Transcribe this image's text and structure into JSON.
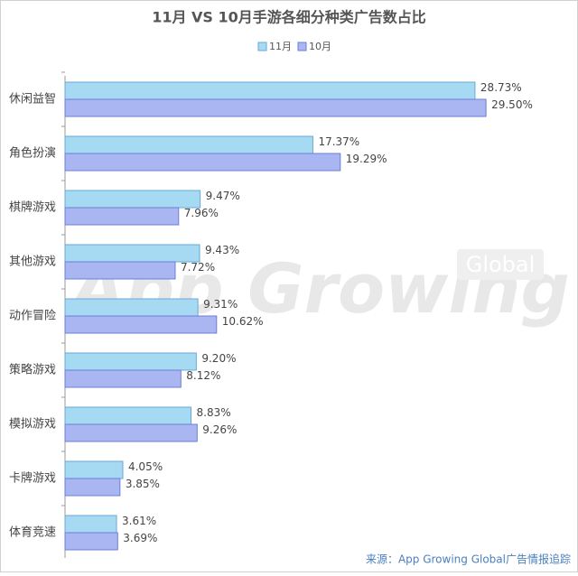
{
  "chart_data": {
    "type": "bar",
    "orientation": "horizontal",
    "title": "11月 VS 10月手游各细分种类广告数占比",
    "categories": [
      "休闲益智",
      "角色扮演",
      "棋牌游戏",
      "其他游戏",
      "动作冒险",
      "策略游戏",
      "模拟游戏",
      "卡牌游戏",
      "体育竞速"
    ],
    "series": [
      {
        "name": "11月",
        "color": "#a6daf3",
        "values": [
          28.73,
          17.37,
          9.47,
          9.43,
          9.31,
          9.2,
          8.83,
          4.05,
          3.61
        ],
        "value_labels": [
          "28.73%",
          "17.37%",
          "9.47%",
          "9.43%",
          "9.31%",
          "9.20%",
          "8.83%",
          "4.05%",
          "3.61%"
        ]
      },
      {
        "name": "10月",
        "color": "#aab6f2",
        "values": [
          29.5,
          19.29,
          7.96,
          7.72,
          10.62,
          8.12,
          9.26,
          3.85,
          3.69
        ],
        "value_labels": [
          "29.50%",
          "19.29%",
          "7.96%",
          "7.72%",
          "10.62%",
          "8.12%",
          "9.26%",
          "3.85%",
          "3.69%"
        ]
      }
    ],
    "legend": "top",
    "watermark": [
      "App Growing",
      "Global"
    ],
    "source": "来源：App Growing Global广告情报追踪"
  }
}
